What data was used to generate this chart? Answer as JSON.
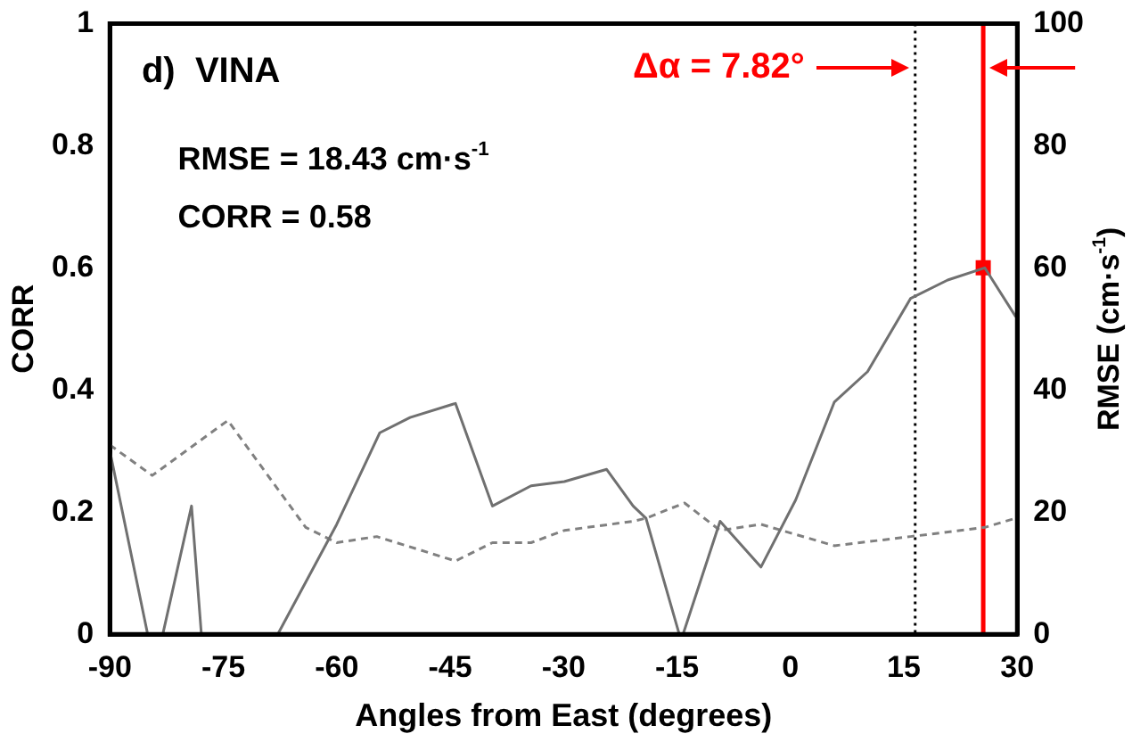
{
  "chart_data": {
    "type": "line",
    "xlabel": "Angles from East (degrees)",
    "ylabel": "CORR",
    "y2label": "RMSE (cm·s$^{-1}$)",
    "xlim": [
      -90,
      30
    ],
    "xticks": [
      -90,
      -75,
      -60,
      -45,
      -30,
      -15,
      0,
      15,
      30
    ],
    "ylim": [
      0,
      1
    ],
    "yticks": [
      0,
      0.2,
      0.4,
      0.6,
      0.8,
      1
    ],
    "y2lim": [
      0,
      100
    ],
    "y2ticks": [
      0,
      20,
      40,
      60,
      80,
      100
    ],
    "grid": false,
    "legend": false,
    "annotations": [
      "d)  VINA",
      "RMSE = 18.43 cm·s$^{-1}$",
      "CORR = 0.58",
      "Δα = 7.82°"
    ],
    "ref_lines": [
      {
        "axis": "x",
        "value": 16.5,
        "color": "#000000",
        "line_style": "dotted"
      },
      {
        "axis": "x",
        "value": 25.5,
        "color": "#ff0000",
        "line_style": "solid"
      }
    ],
    "series": [
      {
        "color": "#707070",
        "line_style": "solid",
        "marker": "none",
        "x": [
          -90,
          -85,
          -84,
          -83,
          -79.2,
          -77.9,
          -73,
          -67.8,
          -60,
          -54.3,
          -50.3,
          -44.3,
          -39.4,
          -34.3,
          -29.9,
          -24.3,
          -20.8,
          -19.1,
          -14.7,
          -14.2,
          -9.3,
          -3.9,
          0.7,
          5.8,
          10.2,
          15.9,
          20.8,
          25.7,
          29.8
        ],
        "values": [
          0.3,
          0,
          null,
          0,
          0.21,
          0,
          null,
          0,
          0.18,
          0.33,
          0.355,
          0.378,
          0.21,
          0.243,
          0.25,
          0.27,
          0.21,
          0.19,
          0,
          0,
          0.185,
          0.11,
          0.22,
          0.38,
          0.43,
          0.55,
          0.58,
          0.6,
          0.52
        ]
      },
      {
        "axis": "y2",
        "color": "#808080",
        "line_style": "dashed",
        "marker": "none",
        "x": [
          -90,
          -84.4,
          -74.4,
          -64.1,
          -60,
          -54.7,
          -44.3,
          -39.4,
          -34.3,
          -29.9,
          -20.8,
          -19.1,
          -14,
          -9.3,
          -3.9,
          5.8,
          15.9,
          25.7,
          29.8
        ],
        "values": [
          31,
          26,
          35,
          17.5,
          15,
          16,
          12,
          15,
          15,
          17,
          18.5,
          19,
          21.5,
          17,
          18,
          14.5,
          16,
          17.5,
          19
        ]
      },
      {
        "type": "scatter",
        "color": "#ff0000",
        "marker": "square",
        "x": [
          25.5
        ],
        "values": [
          0.6
        ]
      }
    ]
  }
}
